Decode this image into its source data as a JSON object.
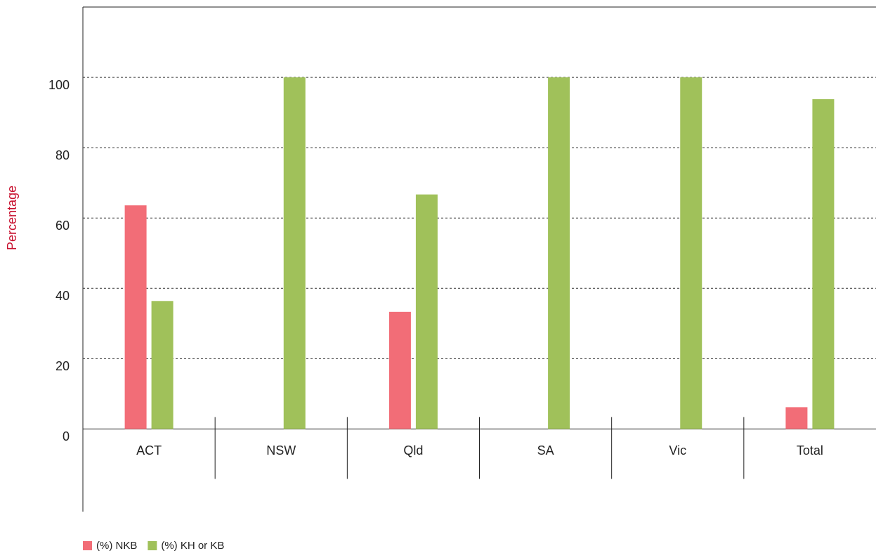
{
  "chart_data": {
    "type": "bar",
    "y_label": "Percentage",
    "categories": [
      "ACT",
      "NSW",
      "Qld",
      "SA",
      "Vic",
      "Total"
    ],
    "series": [
      {
        "name": "(%) NKB",
        "color": "#f26d77",
        "values": [
          63.6,
          0,
          33.3,
          0,
          0,
          6.2
        ]
      },
      {
        "name": "(%) KH or KB",
        "color": "#a0c15a",
        "values": [
          36.4,
          100,
          66.7,
          100,
          100,
          93.8
        ]
      }
    ],
    "ylim": [
      -23.5,
      120
    ],
    "yticks": [
      0,
      20,
      40,
      60,
      80,
      100
    ],
    "grid": true,
    "legend": "bottom-left"
  }
}
